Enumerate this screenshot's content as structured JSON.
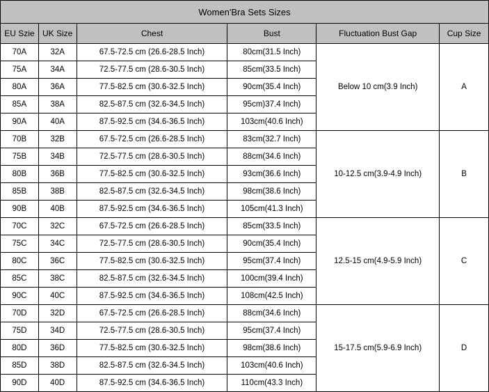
{
  "title": "Women'Bra Sets Sizes",
  "columns": [
    "EU Szie",
    "UK Size",
    "Chest",
    "Bust",
    "Fluctuation Bust Gap",
    "Cup Size"
  ],
  "groups": [
    {
      "fluctuation": "Below 10 cm(3.9 Inch)",
      "cup": "A",
      "rows": [
        {
          "eu": "70A",
          "uk": "32A",
          "chest": "67.5-72.5 cm (26.6-28.5 Inch)",
          "bust": "80cm(31.5 Inch)"
        },
        {
          "eu": "75A",
          "uk": "34A",
          "chest": "72.5-77.5 cm (28.6-30.5 Inch)",
          "bust": "85cm(33.5 Inch)"
        },
        {
          "eu": "80A",
          "uk": "36A",
          "chest": "77.5-82.5 cm (30.6-32.5 Inch)",
          "bust": "90cm(35.4 Inch)"
        },
        {
          "eu": "85A",
          "uk": "38A",
          "chest": "82.5-87.5 cm (32.6-34.5 Inch)",
          "bust": "95cm)37.4 Inch)"
        },
        {
          "eu": "90A",
          "uk": "40A",
          "chest": "87.5-92.5 cm (34.6-36.5 Inch)",
          "bust": "103cm(40.6 Inch)"
        }
      ]
    },
    {
      "fluctuation": "10-12.5 cm(3.9-4.9 Inch)",
      "cup": "B",
      "rows": [
        {
          "eu": "70B",
          "uk": "32B",
          "chest": "67.5-72.5 cm (26.6-28.5 Inch)",
          "bust": "83cm(32.7 Inch)"
        },
        {
          "eu": "75B",
          "uk": "34B",
          "chest": "72.5-77.5 cm (28.6-30.5 Inch)",
          "bust": "88cm(34.6 Inch)"
        },
        {
          "eu": "80B",
          "uk": "36B",
          "chest": "77.5-82.5 cm (30.6-32.5 Inch)",
          "bust": "93cm(36.6 Inch)"
        },
        {
          "eu": "85B",
          "uk": "38B",
          "chest": "82.5-87.5 cm (32.6-34.5 Inch)",
          "bust": "98cm(38.6 Inch)"
        },
        {
          "eu": "90B",
          "uk": "40B",
          "chest": "87.5-92.5 cm (34.6-36.5 Inch)",
          "bust": "105cm(41.3 Inch)"
        }
      ]
    },
    {
      "fluctuation": "12.5-15 cm(4.9-5.9 Inch)",
      "cup": "C",
      "rows": [
        {
          "eu": "70C",
          "uk": "32C",
          "chest": "67.5-72.5 cm (26.6-28.5 Inch)",
          "bust": "85cm(33.5 Inch)"
        },
        {
          "eu": "75C",
          "uk": "34C",
          "chest": "72.5-77.5 cm (28.6-30.5 Inch)",
          "bust": "90cm(35.4 Inch)"
        },
        {
          "eu": "80C",
          "uk": "36C",
          "chest": "77.5-82.5 cm (30.6-32.5 Inch)",
          "bust": "95cm(37.4 Inch)"
        },
        {
          "eu": "85C",
          "uk": "38C",
          "chest": "82.5-87.5 cm (32.6-34.5 Inch)",
          "bust": "100cm(39.4 Inch)"
        },
        {
          "eu": "90C",
          "uk": "40C",
          "chest": "87.5-92.5 cm (34.6-36.5 Inch)",
          "bust": "108cm(42.5 Inch)"
        }
      ]
    },
    {
      "fluctuation": "15-17.5 cm(5.9-6.9 Inch)",
      "cup": "D",
      "rows": [
        {
          "eu": "70D",
          "uk": "32D",
          "chest": "67.5-72.5 cm (26.6-28.5 Inch)",
          "bust": "88cm(34.6 Inch)"
        },
        {
          "eu": "75D",
          "uk": "34D",
          "chest": "72.5-77.5 cm (28.6-30.5 Inch)",
          "bust": "95cm(37.4 Inch)"
        },
        {
          "eu": "80D",
          "uk": "36D",
          "chest": "77.5-82.5 cm (30.6-32.5 Inch)",
          "bust": "98cm(38.6 Inch)"
        },
        {
          "eu": "85D",
          "uk": "38D",
          "chest": "82.5-87.5 cm (32.6-34.5 Inch)",
          "bust": "103cm(40.6 Inch)"
        },
        {
          "eu": "90D",
          "uk": "40D",
          "chest": "87.5-92.5 cm (34.6-36.5 Inch)",
          "bust": "110cm(43.3 Inch)"
        }
      ]
    }
  ]
}
